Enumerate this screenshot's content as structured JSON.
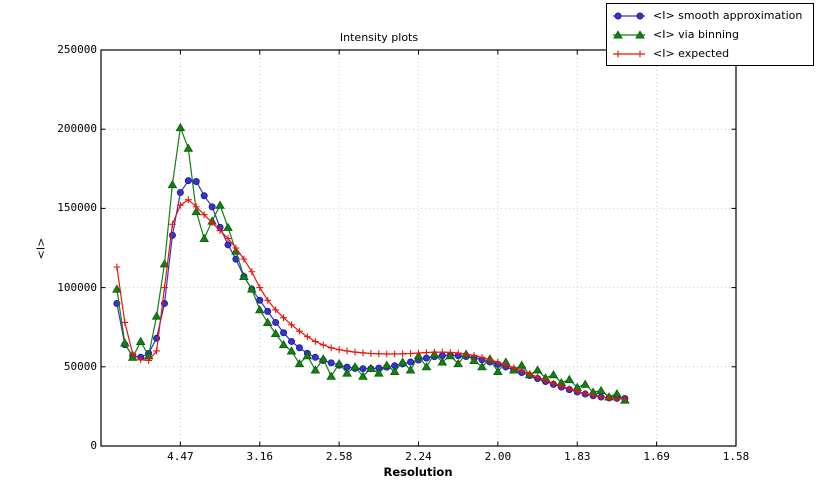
{
  "title": "Intensity plots",
  "axes": {
    "x_label": "Resolution",
    "y_label": "<I>"
  },
  "legend": {
    "entries": [
      {
        "label": "<I> smooth approximation",
        "marker": "circle",
        "color": "#3632cd",
        "edge": "#1b17a0"
      },
      {
        "label": "<I> via binning",
        "marker": "triangle",
        "color": "#128012",
        "edge": "#0a5d0a"
      },
      {
        "label": "<I> expected",
        "marker": "plus",
        "color": "#e8150c",
        "edge": "#e8150c"
      }
    ]
  },
  "chart_data": {
    "type": "line",
    "title": "Intensity plots",
    "xlabel": "Resolution",
    "ylabel": "<I>",
    "x_axis_note": "x is 1/d^2; tick labels show resolution d in Angstrom",
    "xlim": [
      0,
      0.4
    ],
    "ylim": [
      0,
      250000
    ],
    "grid": true,
    "legend_position": "upper right, outside top of axes",
    "x_tick_positions": [
      0.05,
      0.1,
      0.15,
      0.2,
      0.25,
      0.3,
      0.35,
      0.4
    ],
    "x_tick_labels": [
      "4.47",
      "3.16",
      "2.58",
      "2.24",
      "2.00",
      "1.83",
      "1.69",
      "1.58"
    ],
    "y_tick_values": [
      0,
      50000,
      100000,
      150000,
      200000,
      250000
    ],
    "y_tick_labels": [
      "0",
      "50000",
      "100000",
      "150000",
      "200000",
      "250000"
    ],
    "x": [
      0.01,
      0.015,
      0.02,
      0.025,
      0.03,
      0.035,
      0.04,
      0.045,
      0.05,
      0.055,
      0.06,
      0.065,
      0.07,
      0.075,
      0.08,
      0.085,
      0.09,
      0.095,
      0.1,
      0.105,
      0.11,
      0.115,
      0.12,
      0.125,
      0.13,
      0.135,
      0.14,
      0.145,
      0.15,
      0.155,
      0.16,
      0.165,
      0.17,
      0.175,
      0.18,
      0.185,
      0.19,
      0.195,
      0.2,
      0.205,
      0.21,
      0.215,
      0.22,
      0.225,
      0.23,
      0.235,
      0.24,
      0.245,
      0.25,
      0.255,
      0.26,
      0.265,
      0.27,
      0.275,
      0.28,
      0.285,
      0.29,
      0.295,
      0.3,
      0.305,
      0.31,
      0.315,
      0.32,
      0.325,
      0.33
    ],
    "series": [
      {
        "name": "<I> smooth approximation",
        "marker": "circle",
        "color": "#3632cd",
        "edge": "#1b17a0",
        "values": [
          90000,
          64000,
          57000,
          56000,
          58500,
          68000,
          90000,
          133000,
          160000,
          167500,
          167000,
          158000,
          151000,
          138000,
          127000,
          118000,
          107000,
          99000,
          92000,
          85000,
          78000,
          71500,
          66000,
          62000,
          58500,
          56000,
          54000,
          52500,
          51000,
          49800,
          49000,
          48800,
          48800,
          49200,
          49800,
          50700,
          51800,
          53000,
          54300,
          55500,
          56400,
          57000,
          57200,
          57000,
          56500,
          55600,
          54400,
          53000,
          51500,
          49900,
          48200,
          46400,
          44500,
          42600,
          40700,
          38900,
          37200,
          35600,
          34100,
          32800,
          31700,
          30900,
          30400,
          30100,
          30000
        ]
      },
      {
        "name": "<I> via binning",
        "marker": "triangle",
        "color": "#128012",
        "edge": "#0a5d0a",
        "values": [
          99000,
          65000,
          56000,
          66000,
          57000,
          82000,
          115000,
          165000,
          201000,
          188000,
          148000,
          131000,
          142000,
          152000,
          138000,
          123000,
          107000,
          99000,
          86000,
          78000,
          71000,
          64000,
          60000,
          52000,
          57000,
          48000,
          55000,
          44000,
          52000,
          46000,
          50000,
          44000,
          49000,
          46000,
          51000,
          47000,
          53000,
          48000,
          57000,
          50000,
          58000,
          53000,
          57000,
          52000,
          58000,
          54000,
          50000,
          55000,
          47000,
          53000,
          48000,
          51000,
          45000,
          48000,
          43000,
          45000,
          40000,
          42000,
          37000,
          39000,
          34000,
          35000,
          31000,
          33000,
          29000
        ]
      },
      {
        "name": "<I> expected",
        "marker": "plus",
        "color": "#e8150c",
        "edge": "#e8150c",
        "values": [
          113000,
          78000,
          58000,
          54500,
          54000,
          60000,
          100000,
          140000,
          152000,
          155500,
          151000,
          146000,
          141000,
          136000,
          131000,
          125000,
          118000,
          110000,
          100000,
          92000,
          86000,
          81000,
          76500,
          72500,
          69000,
          66000,
          63800,
          62000,
          60800,
          60000,
          59300,
          58800,
          58400,
          58200,
          58100,
          58100,
          58200,
          58400,
          58700,
          59000,
          59200,
          59300,
          59100,
          58700,
          58000,
          57100,
          55900,
          54500,
          52900,
          51200,
          49400,
          47500,
          45500,
          43500,
          41500,
          39600,
          37800,
          36100,
          34500,
          33100,
          31900,
          31000,
          30300,
          29900,
          29700
        ]
      }
    ]
  }
}
